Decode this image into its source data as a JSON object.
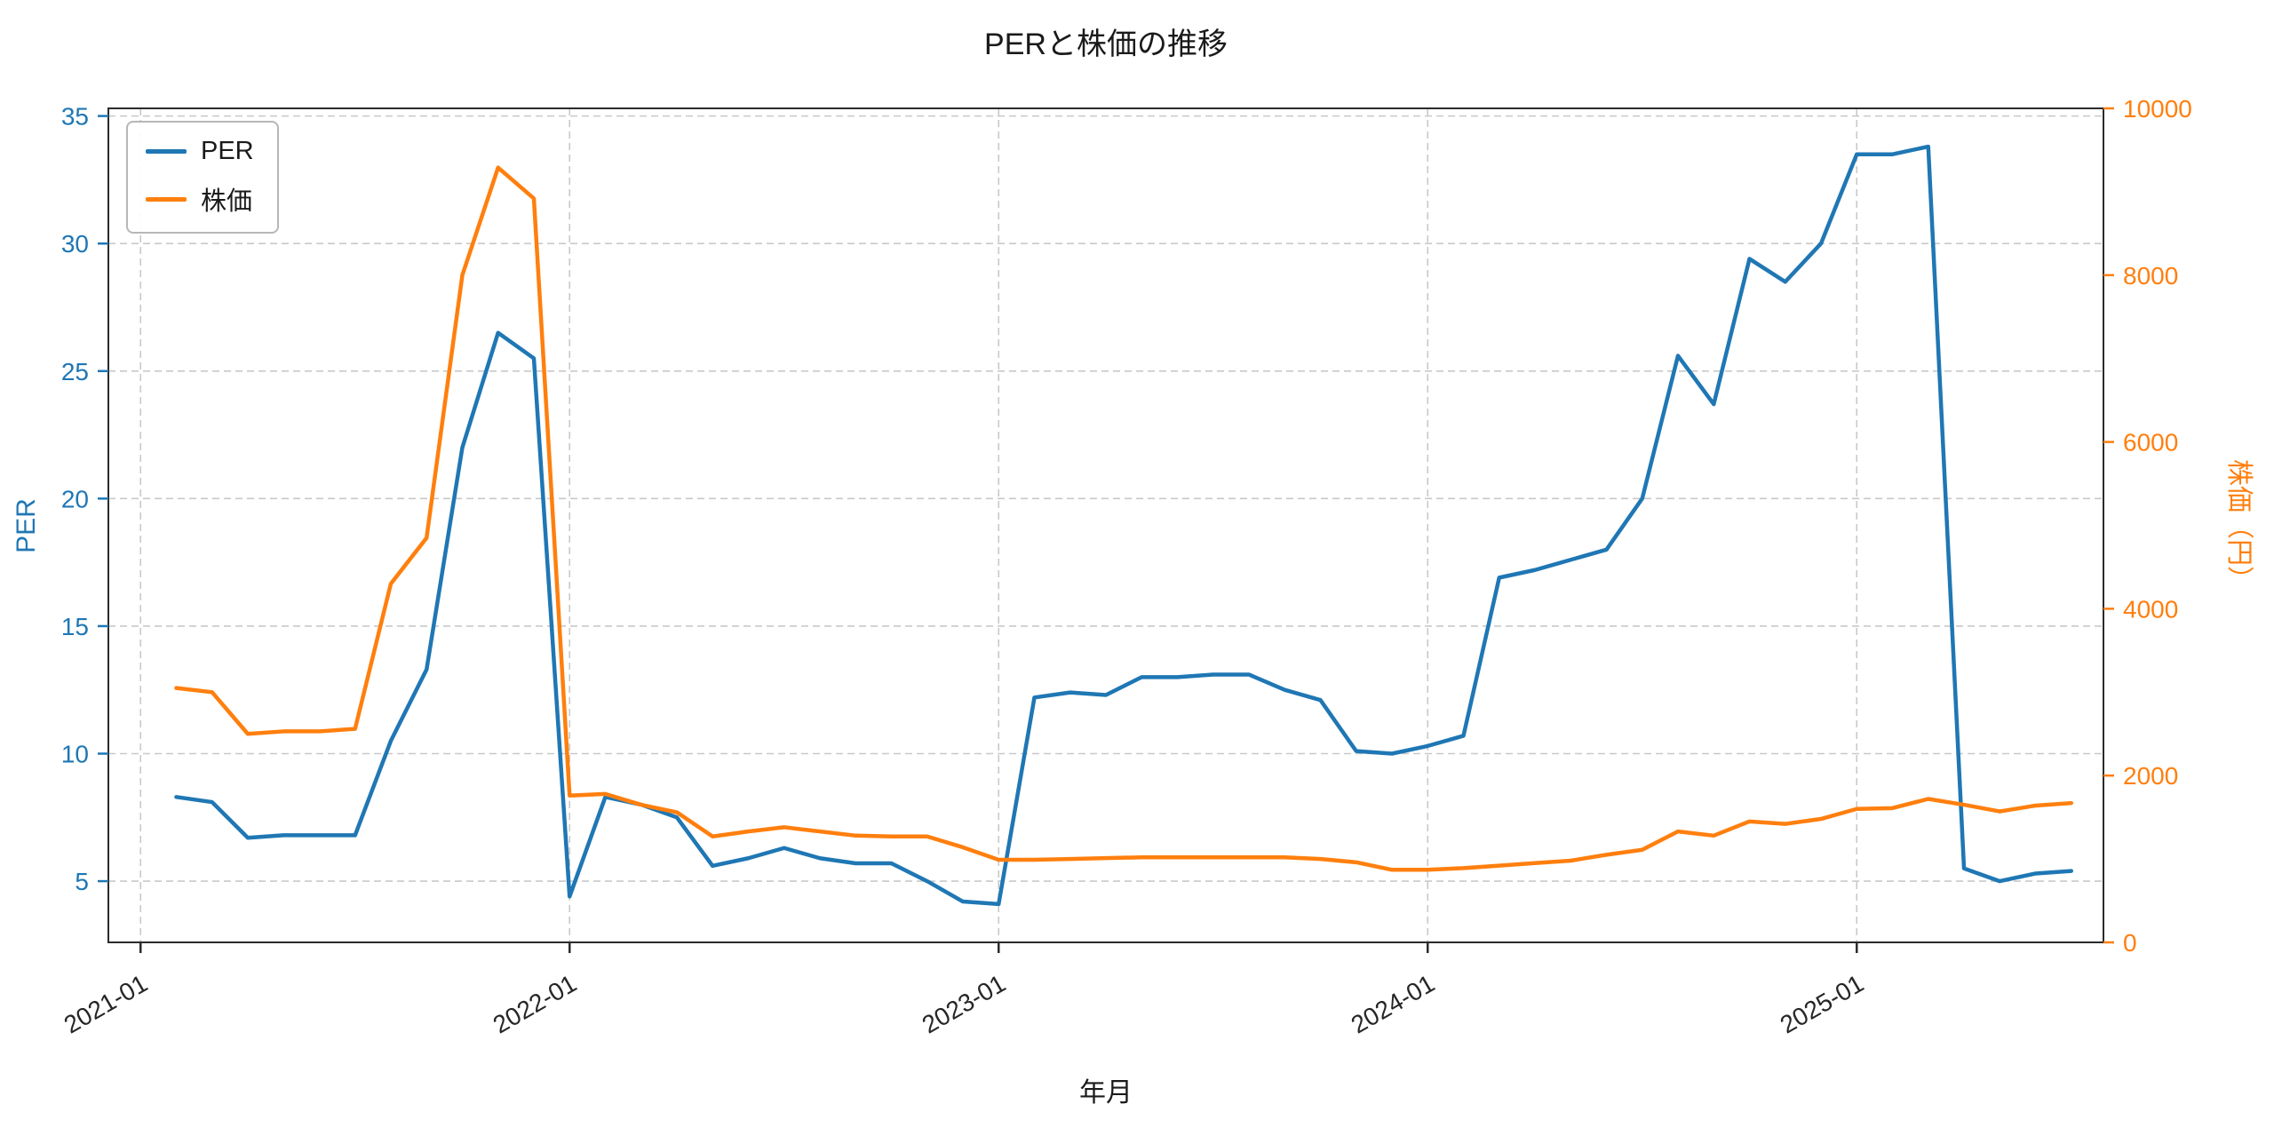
{
  "chart_data": {
    "type": "line",
    "title": "PERと株価の推移",
    "xlabel": "年月",
    "ylabel_left": "PER",
    "ylabel_right": "株価（円）",
    "grid": true,
    "legend_position": "upper-left",
    "axis_colors": {
      "left": "#1f77b4",
      "right": "#ff7f0e",
      "x": "#262626",
      "frame": "#2b2b2b"
    },
    "xlim_t": [
      -0.9,
      54.9
    ],
    "ylim_left": [
      2.6,
      35.3
    ],
    "yticks_left": [
      5,
      10,
      15,
      20,
      25,
      30,
      35
    ],
    "ylim_right": [
      0,
      10000
    ],
    "yticks_right": [
      0,
      2000,
      4000,
      6000,
      8000,
      10000
    ],
    "x_ticks": [
      {
        "label": "2021-01",
        "t": 0
      },
      {
        "label": "2022-01",
        "t": 12
      },
      {
        "label": "2023-01",
        "t": 24
      },
      {
        "label": "2024-01",
        "t": 36
      },
      {
        "label": "2025-01",
        "t": 48
      }
    ],
    "x": [
      "2021-02",
      "2021-03",
      "2021-04",
      "2021-05",
      "2021-06",
      "2021-07",
      "2021-08",
      "2021-09",
      "2021-10",
      "2021-11",
      "2021-12",
      "2022-01",
      "2022-02",
      "2022-03",
      "2022-04",
      "2022-05",
      "2022-06",
      "2022-07",
      "2022-08",
      "2022-09",
      "2022-10",
      "2022-11",
      "2022-12",
      "2023-01",
      "2023-02",
      "2023-03",
      "2023-04",
      "2023-05",
      "2023-06",
      "2023-07",
      "2023-08",
      "2023-09",
      "2023-10",
      "2023-11",
      "2023-12",
      "2024-01",
      "2024-02",
      "2024-03",
      "2024-04",
      "2024-05",
      "2024-06",
      "2024-07",
      "2024-08",
      "2024-09",
      "2024-10",
      "2024-11",
      "2024-12",
      "2025-01",
      "2025-02",
      "2025-03",
      "2025-04",
      "2025-05",
      "2025-06",
      "2025-07"
    ],
    "series": [
      {
        "id": "per",
        "name": "PER",
        "axis": "left",
        "color": "#1f77b4",
        "values": [
          8.3,
          8.1,
          6.7,
          6.8,
          6.8,
          6.8,
          10.5,
          13.3,
          22.0,
          26.5,
          25.5,
          4.4,
          8.3,
          8.0,
          7.5,
          5.6,
          5.9,
          6.3,
          5.9,
          5.7,
          5.7,
          5.0,
          4.2,
          4.1,
          12.2,
          12.4,
          12.3,
          13.0,
          13.0,
          13.1,
          13.1,
          12.5,
          12.1,
          10.1,
          10.0,
          10.3,
          10.7,
          16.9,
          17.2,
          17.6,
          18.0,
          20.0,
          25.6,
          23.7,
          29.4,
          28.5,
          30.0,
          33.5,
          33.5,
          33.8,
          5.5,
          5.0,
          5.3,
          5.4
        ]
      },
      {
        "id": "price",
        "name": "株価",
        "axis": "right",
        "color": "#ff7f0e",
        "values": [
          3050,
          3000,
          2500,
          2530,
          2530,
          2560,
          4300,
          4850,
          8000,
          9290,
          8920,
          1760,
          1780,
          1650,
          1560,
          1270,
          1330,
          1380,
          1330,
          1280,
          1270,
          1270,
          1140,
          990,
          990,
          1000,
          1010,
          1020,
          1020,
          1020,
          1020,
          1020,
          1000,
          960,
          870,
          870,
          890,
          920,
          950,
          980,
          1050,
          1110,
          1330,
          1280,
          1450,
          1420,
          1480,
          1600,
          1610,
          1720,
          1650,
          1570,
          1640,
          1670
        ]
      }
    ]
  }
}
